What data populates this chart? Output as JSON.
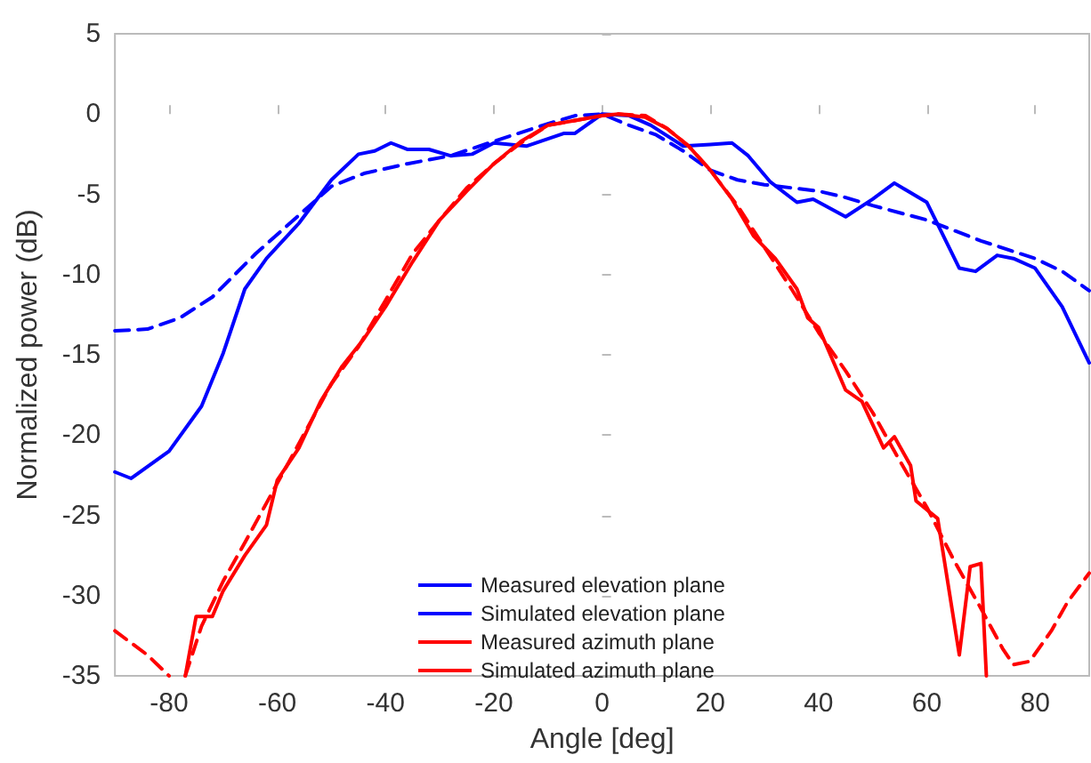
{
  "chart_data": {
    "type": "line",
    "xlabel": "Angle [deg]",
    "ylabel": "Normalized power (dB)",
    "xlim": [
      -90,
      90
    ],
    "ylim": [
      -35,
      5
    ],
    "xticks": [
      -80,
      -60,
      -40,
      -20,
      0,
      20,
      40,
      60,
      80
    ],
    "yticks": [
      -35,
      -30,
      -25,
      -20,
      -15,
      -10,
      -5,
      0,
      5
    ],
    "legend": "bottom",
    "marker": "none",
    "series": [
      {
        "name": "Measured elevation plane",
        "color": "#0000ff",
        "line_style": "solid",
        "x": [
          -90,
          -87,
          -80,
          -74,
          -70,
          -66,
          -62,
          -56,
          -50,
          -45,
          -42,
          -39,
          -36,
          -32,
          -28,
          -24,
          -20,
          -14,
          -7,
          -5,
          0,
          5,
          9,
          15,
          20,
          24,
          27,
          31,
          36,
          39,
          45,
          50,
          54,
          60,
          66,
          69,
          73,
          76,
          80,
          85,
          90
        ],
        "values": [
          -22.3,
          -22.7,
          -21,
          -18.2,
          -14.9,
          -10.9,
          -9,
          -6.8,
          -4.1,
          -2.5,
          -2.3,
          -1.8,
          -2.2,
          -2.2,
          -2.6,
          -2.5,
          -1.8,
          -2,
          -1.2,
          -1.2,
          0,
          -0.1,
          -0.7,
          -2,
          -1.9,
          -1.8,
          -2.6,
          -4.2,
          -5.5,
          -5.3,
          -6.4,
          -5.3,
          -4.3,
          -5.5,
          -9.6,
          -9.8,
          -8.8,
          -9,
          -9.6,
          -12,
          -15.5
        ]
      },
      {
        "name": "Simulated elevation plane",
        "color": "#0000ff",
        "line_style": "dashed",
        "x": [
          -90,
          -84,
          -78,
          -72,
          -64,
          -56,
          -50,
          -44,
          -36,
          -28,
          -20,
          -10,
          -5,
          0,
          5,
          10,
          15,
          20,
          25,
          30,
          40,
          45,
          50,
          60,
          70,
          80,
          85,
          90
        ],
        "values": [
          -13.5,
          -13.4,
          -12.7,
          -11.4,
          -8.7,
          -6.3,
          -4.5,
          -3.7,
          -3.1,
          -2.6,
          -1.7,
          -0.6,
          -0.1,
          0,
          -0.7,
          -1.3,
          -2.3,
          -3.5,
          -4.1,
          -4.4,
          -4.8,
          -5.2,
          -5.7,
          -6.6,
          -7.9,
          -9,
          -9.8,
          -11
        ]
      },
      {
        "name": "Measured azimuth plane",
        "color": "#ff0000",
        "line_style": "solid",
        "x": [
          -77,
          -75,
          -72,
          -70,
          -66,
          -62,
          -60,
          -56,
          -52,
          -48,
          -44,
          -40,
          -35,
          -30,
          -25,
          -20,
          -15,
          -10,
          -5,
          0,
          3,
          8,
          12,
          16,
          20,
          24,
          28,
          32,
          36,
          38,
          40,
          45,
          48,
          52,
          54,
          57,
          58,
          62,
          66,
          68,
          70,
          71
        ],
        "values": [
          -35,
          -31.3,
          -31.3,
          -29.7,
          -27.5,
          -25.6,
          -22.8,
          -20.8,
          -17.9,
          -15.7,
          -14,
          -12,
          -9.2,
          -6.6,
          -4.8,
          -3.1,
          -1.7,
          -0.7,
          -0.4,
          -0.1,
          0,
          -0.2,
          -0.9,
          -2,
          -3.5,
          -5.3,
          -7.6,
          -9,
          -10.9,
          -12.7,
          -13.3,
          -17.2,
          -17.9,
          -20.8,
          -20.1,
          -21.9,
          -24.1,
          -25.2,
          -33.7,
          -28.2,
          -28,
          -35
        ]
      },
      {
        "name": "Simulated azimuth plane",
        "color": "#ff0000",
        "line_style": "dashed",
        "x": [
          -90,
          -84,
          -80,
          -79,
          -77,
          -74,
          -70,
          -66,
          -60,
          -55,
          -50,
          -45,
          -40,
          -35,
          -30,
          -25,
          -20,
          -15,
          -10,
          -5,
          0,
          3,
          8,
          12,
          16,
          20,
          25,
          30,
          35,
          40,
          45,
          50,
          55,
          60,
          65,
          70,
          74,
          76,
          79,
          83,
          86,
          90
        ],
        "values": [
          -32.2,
          -33.7,
          -35,
          null,
          -35,
          -31.9,
          -29.1,
          -26.7,
          -23,
          -19.9,
          -16.8,
          -14.5,
          -11.6,
          -8.7,
          -6.6,
          -4.6,
          -3.1,
          -1.8,
          -0.7,
          -0.4,
          -0.1,
          0,
          -0.1,
          -0.9,
          -2,
          -3.5,
          -5.7,
          -8.3,
          -10.9,
          -13.6,
          -16,
          -18.6,
          -21.6,
          -24.5,
          -27.8,
          -30.8,
          -33.3,
          -34.3,
          -34.1,
          -32.2,
          -30.4,
          -28.6
        ]
      }
    ]
  }
}
